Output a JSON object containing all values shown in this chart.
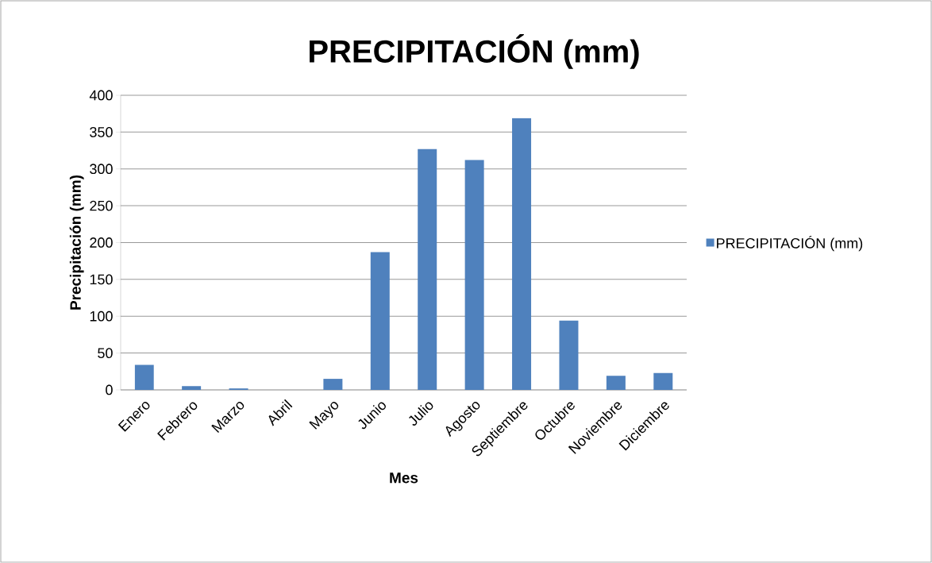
{
  "chart_data": {
    "type": "bar",
    "title": "PRECIPITACIÓN (mm)",
    "xlabel": "Mes",
    "ylabel": "Precipitación (mm)",
    "categories": [
      "Enero",
      "Febrero",
      "Marzo",
      "Abril",
      "Mayo",
      "Junio",
      "Julio",
      "Agosto",
      "Septiembre",
      "Octubre",
      "Noviembre",
      "Diciembre"
    ],
    "series": [
      {
        "name": "PRECIPITACIÓN (mm)",
        "color": "#4f81bd",
        "values": [
          34,
          5,
          2,
          0,
          15,
          187,
          327,
          312,
          369,
          94,
          19,
          23
        ]
      }
    ],
    "ylim": [
      0,
      400
    ],
    "yticks": [
      0,
      50,
      100,
      150,
      200,
      250,
      300,
      350,
      400
    ],
    "grid": "y",
    "legend": "right"
  }
}
